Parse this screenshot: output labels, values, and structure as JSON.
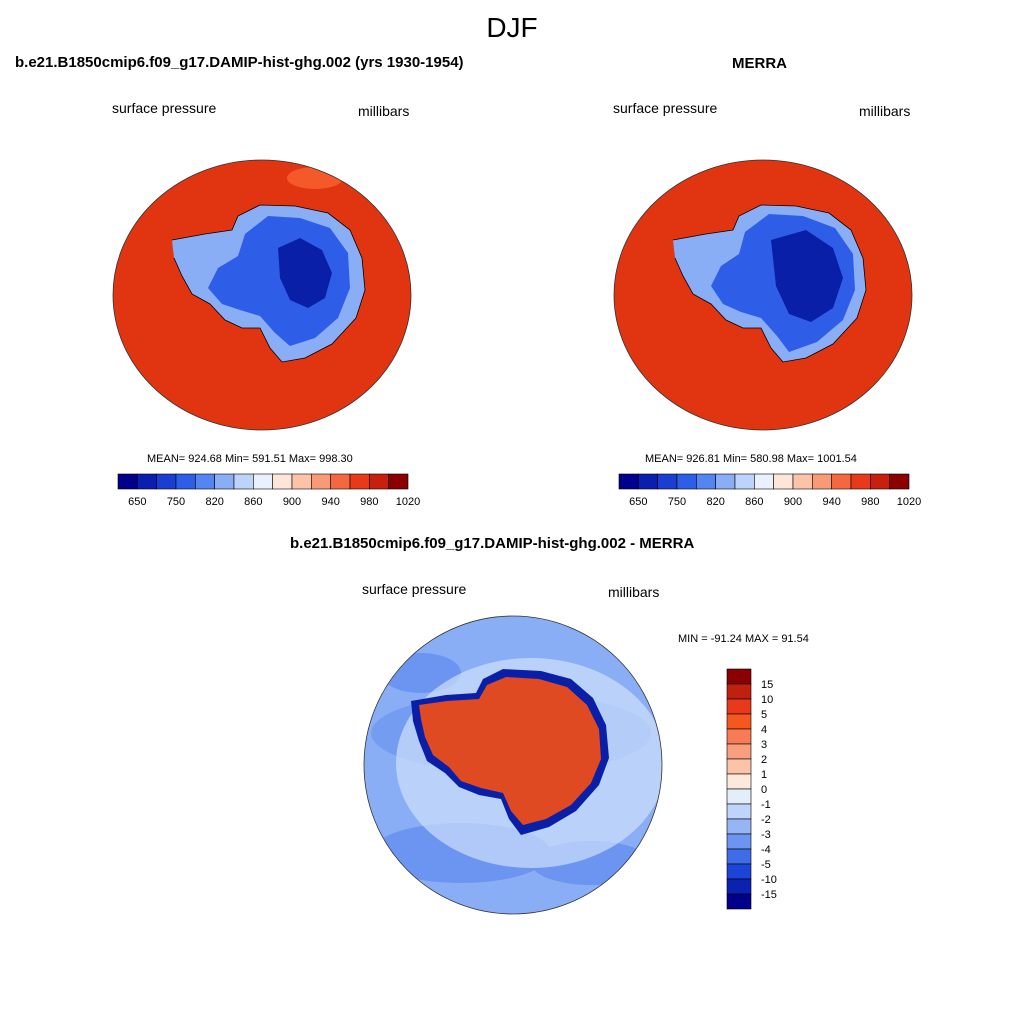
{
  "figure": {
    "title": "DJF"
  },
  "panels": [
    {
      "title": "b.e21.B1850cmip6.f09_g17.DAMIP-hist-ghg.002 (yrs 1930-1954)",
      "variable": "surface pressure",
      "units": "millibars",
      "stats": "MEAN= 924.68  Min= 591.51  Max= 998.30"
    },
    {
      "title": "MERRA",
      "variable": "surface pressure",
      "units": "millibars",
      "stats": "MEAN= 926.81  Min= 580.98  Max= 1001.54"
    },
    {
      "title": "b.e21.B1850cmip6.f09_g17.DAMIP-hist-ghg.002 - MERRA",
      "variable": "surface pressure",
      "units": "millibars",
      "stats": "MIN = -91.24 MAX =  91.54"
    }
  ],
  "colorbar_abs": {
    "tick_labels": [
      "650",
      "750",
      "820",
      "860",
      "900",
      "940",
      "980",
      "1020"
    ],
    "colors": [
      "#00008b",
      "#0a1fb0",
      "#1a3fd0",
      "#2e5ee8",
      "#5585f0",
      "#8aaef5",
      "#bcd3fa",
      "#e8f1fd",
      "#fde5d8",
      "#fcc3a8",
      "#f99a77",
      "#f5673f",
      "#e8391a",
      "#c8200f",
      "#8b0000"
    ]
  },
  "colorbar_diff": {
    "tick_labels": [
      "15",
      "10",
      "5",
      "4",
      "3",
      "2",
      "1",
      "0",
      "-1",
      "-2",
      "-3",
      "-4",
      "-5",
      "-10",
      "-15"
    ],
    "colors": [
      "#8b0000",
      "#c0200e",
      "#e8391a",
      "#f5581f",
      "#f77c55",
      "#f99e7e",
      "#fbc4a8",
      "#fde9dc",
      "#e3eefb",
      "#bfd4f9",
      "#95b5f5",
      "#6b95f0",
      "#3f6de8",
      "#1c44d6",
      "#0a22b0",
      "#00008b"
    ]
  },
  "map_colors": {
    "ocean_abs": "#e03510",
    "ocean_abs_high": "#f5592a",
    "ice_dark": "#0a1fa8",
    "ice_mid": "#2e5ee8",
    "ice_light": "#8aaef5",
    "diff_bg": "#8aaef5",
    "diff_mid": "#6b95f0",
    "diff_light": "#cfe0fb",
    "diff_land": "#e04a22",
    "diff_edge": "#0a1fa8"
  }
}
